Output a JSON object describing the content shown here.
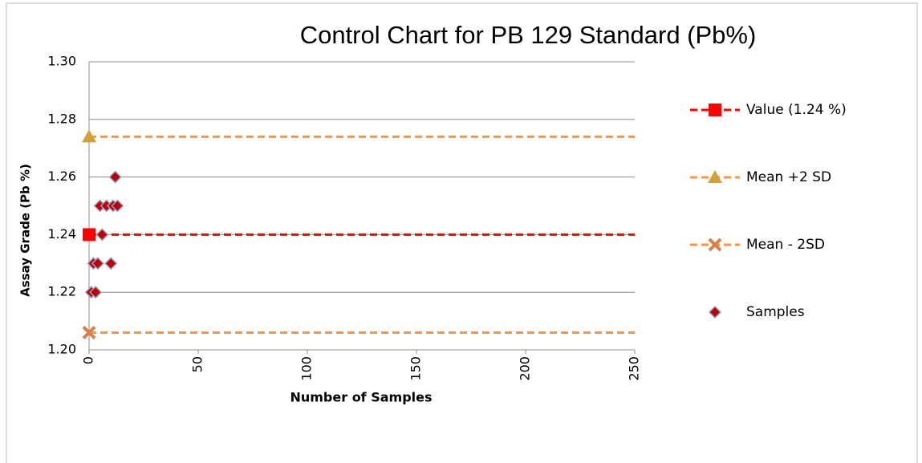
{
  "chart_data": {
    "type": "scatter",
    "title": "Control Chart for PB 129 Standard (Pb%)",
    "x_label": "Number of Samples",
    "y_label": "Assay Grade (Pb %)",
    "xlim": [
      0,
      250
    ],
    "xticks": [
      0,
      50,
      100,
      150,
      200,
      250
    ],
    "ylim": [
      1.2,
      1.3
    ],
    "yticks": [
      {
        "value": 1.2,
        "label": "1.20"
      },
      1.22,
      1.24,
      1.26,
      1.28,
      {
        "value": 1.3,
        "label": "1.30"
      }
    ],
    "grid": true,
    "legend": "right",
    "series": [
      {
        "name": "Value (1.24 %)",
        "kind": "line",
        "marker": "square",
        "color": "#ff0000",
        "marker_color": "#ff0000",
        "x": [
          0,
          250
        ],
        "values": [
          1.24,
          1.24
        ]
      },
      {
        "name": "Mean +2 SD",
        "kind": "line",
        "marker": "triangle",
        "color": "#f79646",
        "marker_color": "#d4a03c",
        "x": [
          0,
          250
        ],
        "values": [
          1.274,
          1.274
        ]
      },
      {
        "name": "Mean - 2SD",
        "kind": "line",
        "marker": "cross",
        "color": "#f79646",
        "marker_color": "#d9804a",
        "x": [
          0,
          250
        ],
        "values": [
          1.206,
          1.206
        ]
      },
      {
        "name": "Samples",
        "kind": "points",
        "marker": "diamond",
        "color": "#c00000",
        "marker_color": "#c00000",
        "x": [
          1,
          2,
          3,
          4,
          5,
          6,
          8,
          10,
          11,
          12,
          13
        ],
        "values": [
          1.22,
          1.23,
          1.22,
          1.23,
          1.25,
          1.24,
          1.25,
          1.23,
          1.25,
          1.26,
          1.25
        ]
      }
    ]
  }
}
